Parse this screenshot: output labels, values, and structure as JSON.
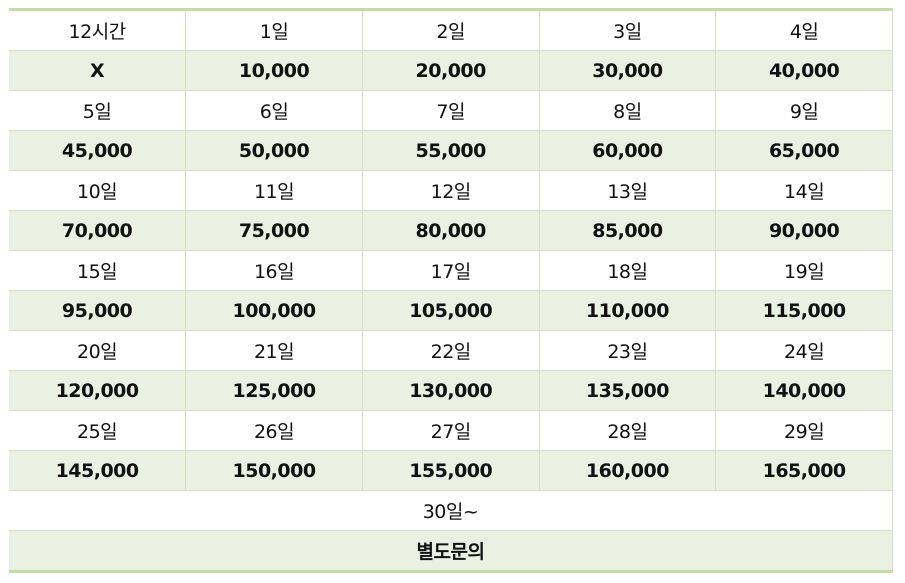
{
  "accent_colors": {
    "border": "#c4dcaa",
    "price_row_bg": "#ebf1e2"
  },
  "rows": [
    {
      "labels": [
        "12시간",
        "1일",
        "2일",
        "3일",
        "4일"
      ],
      "prices": [
        "X",
        "10,000",
        "20,000",
        "30,000",
        "40,000"
      ]
    },
    {
      "labels": [
        "5일",
        "6일",
        "7일",
        "8일",
        "9일"
      ],
      "prices": [
        "45,000",
        "50,000",
        "55,000",
        "60,000",
        "65,000"
      ]
    },
    {
      "labels": [
        "10일",
        "11일",
        "12일",
        "13일",
        "14일"
      ],
      "prices": [
        "70,000",
        "75,000",
        "80,000",
        "85,000",
        "90,000"
      ]
    },
    {
      "labels": [
        "15일",
        "16일",
        "17일",
        "18일",
        "19일"
      ],
      "prices": [
        "95,000",
        "100,000",
        "105,000",
        "110,000",
        "115,000"
      ]
    },
    {
      "labels": [
        "20일",
        "21일",
        "22일",
        "23일",
        "24일"
      ],
      "prices": [
        "120,000",
        "125,000",
        "130,000",
        "135,000",
        "140,000"
      ]
    },
    {
      "labels": [
        "25일",
        "26일",
        "27일",
        "28일",
        "29일"
      ],
      "prices": [
        "145,000",
        "150,000",
        "155,000",
        "160,000",
        "165,000"
      ]
    }
  ],
  "footer": {
    "label": "30일~",
    "price": "별도문의"
  }
}
